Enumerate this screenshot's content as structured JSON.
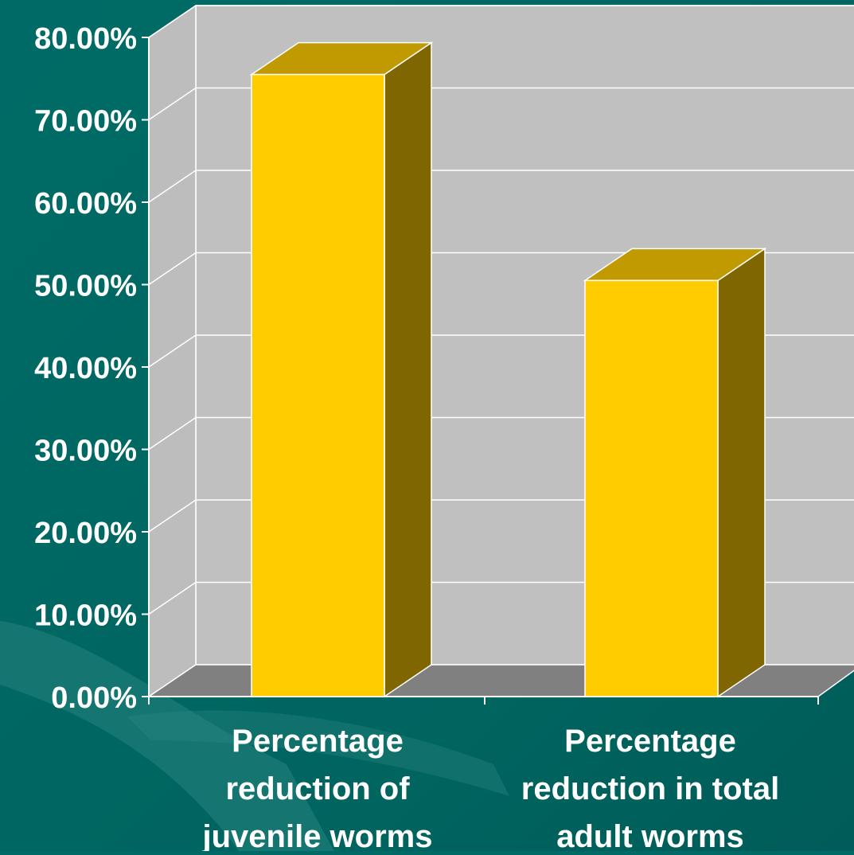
{
  "chart_data": {
    "type": "bar",
    "categories": [
      [
        "Percentage",
        "reduction of",
        "juvenile worms"
      ],
      [
        "Percentage",
        "reduction in total",
        "adult worms"
      ]
    ],
    "values": [
      0.755,
      0.505
    ],
    "ylim": [
      0,
      0.8
    ],
    "yticks": [
      "0.00%",
      "10.00%",
      "20.00%",
      "30.00%",
      "40.00%",
      "50.00%",
      "60.00%",
      "70.00%",
      "80.00%"
    ],
    "grid": true,
    "three_d": true,
    "colors": {
      "background": "#006b66",
      "wall": "#c0c0c0",
      "wall_side": "#bdbdbd",
      "floor": "#808080",
      "bar_front": "#ffcc00",
      "bar_top": "#c09a00",
      "bar_side": "#806600",
      "grid": "#ffffff",
      "text": "#ffffff"
    }
  }
}
